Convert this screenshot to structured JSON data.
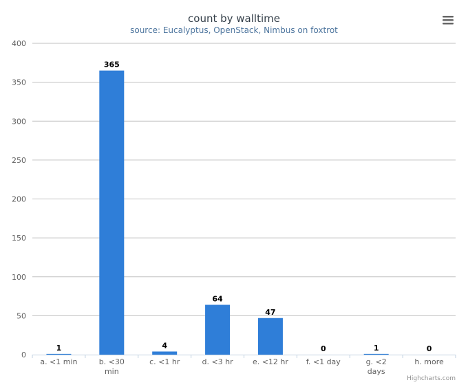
{
  "chart_data": {
    "type": "bar",
    "title": "count by walltime",
    "subtitle": "source: Eucalyptus, OpenStack, Nimbus on foxtrot",
    "xlabel": "",
    "ylabel": "",
    "categories": [
      [
        "a. <1 min"
      ],
      [
        "b. <30",
        "min"
      ],
      [
        "c. <1 hr"
      ],
      [
        "d. <3 hr"
      ],
      [
        "e. <12 hr"
      ],
      [
        "f. <1 day"
      ],
      [
        "g. <2",
        "days"
      ],
      [
        "h. more"
      ]
    ],
    "values": [
      1,
      365,
      4,
      64,
      47,
      0,
      1,
      0
    ],
    "ylim": [
      0,
      400
    ],
    "yticks": [
      0,
      50,
      100,
      150,
      200,
      250,
      300,
      350,
      400
    ],
    "grid": true,
    "legend": "none",
    "bar_color": "#2f7ed8"
  },
  "credit": "Highcharts.com",
  "menu_icon": "hamburger-menu-icon"
}
